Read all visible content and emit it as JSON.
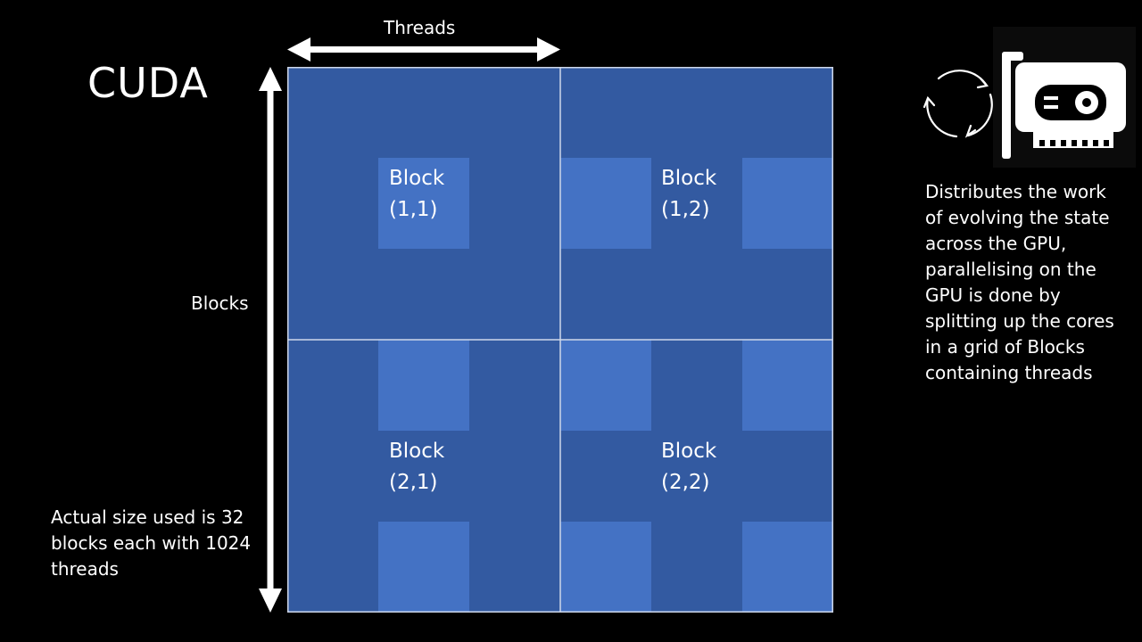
{
  "title": "CUDA",
  "axes": {
    "threads_label": "Threads",
    "blocks_label": "Blocks"
  },
  "blocks": [
    {
      "line1": "Block",
      "line2": "(1,1)"
    },
    {
      "line1": "Block",
      "line2": "(1,2)"
    },
    {
      "line1": "Block",
      "line2": "(2,1)"
    },
    {
      "line1": "Block",
      "line2": "(2,2)"
    }
  ],
  "description": "Distributes the work of evolving the state across the GPU, parallelising on the GPU is done by splitting up the cores in a grid of Blocks containing threads",
  "note": "Actual size used is 32 blocks each with 1024 threads",
  "icons": {
    "cycle": "refresh-cycle-icon",
    "gpu": "gpu-card-icon"
  },
  "colors": {
    "background": "#000000",
    "block_dark": "#335aa1",
    "block_light": "#4472c4",
    "grid_line": "#cfd8ea",
    "text": "#ffffff"
  }
}
